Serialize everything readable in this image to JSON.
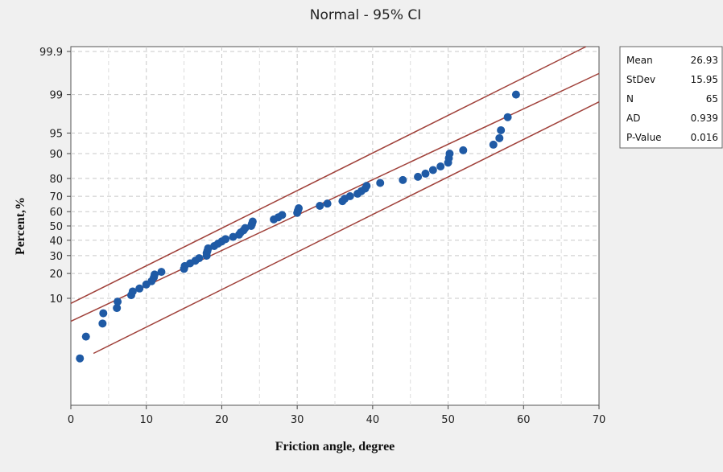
{
  "chart_data": {
    "type": "scatter",
    "title": "Normal - 95% CI",
    "xlabel": "Friction angle, degree",
    "ylabel": "Percent,%",
    "xlim": [
      0,
      70
    ],
    "ylim_percent": [
      0.1,
      99.9
    ],
    "y_scale": "normal-probability",
    "grid": true,
    "x_ticks": [
      "0",
      "10",
      "20",
      "30",
      "40",
      "50",
      "60",
      "70"
    ],
    "y_ticks": [
      {
        "value": 10,
        "label": "10"
      },
      {
        "value": 20,
        "label": "20"
      },
      {
        "value": 30,
        "label": "30"
      },
      {
        "value": 40,
        "label": "40"
      },
      {
        "value": 50,
        "label": "50"
      },
      {
        "value": 60,
        "label": "60"
      },
      {
        "value": 70,
        "label": "70"
      },
      {
        "value": 80,
        "label": "80"
      },
      {
        "value": 90,
        "label": "90"
      },
      {
        "value": 95,
        "label": "95"
      },
      {
        "value": 99,
        "label": "99"
      },
      {
        "value": 99.9,
        "label": "99.9"
      }
    ],
    "fit": {
      "mean": 26.93,
      "stdev": 15.95
    },
    "ci_lines": {
      "upper": [
        [
          0,
          8.5
        ],
        [
          70,
          99.95
        ]
      ],
      "lower": [
        [
          3,
          1.2
        ],
        [
          70,
          98.6
        ]
      ]
    },
    "points": [
      [
        1.2,
        0.95
      ],
      [
        2,
        2.5
      ],
      [
        4.2,
        4.2
      ],
      [
        4.3,
        6.1
      ],
      [
        6.1,
        7.3
      ],
      [
        6.2,
        9.0
      ],
      [
        8.0,
        11.0
      ],
      [
        8.2,
        12.3
      ],
      [
        9.1,
        13.4
      ],
      [
        10.0,
        15.0
      ],
      [
        10.7,
        16.4
      ],
      [
        11.0,
        18.1
      ],
      [
        11.1,
        19.5
      ],
      [
        12.0,
        20.8
      ],
      [
        15.0,
        22.4
      ],
      [
        15.1,
        23.9
      ],
      [
        15.8,
        25.4
      ],
      [
        16.5,
        26.9
      ],
      [
        17.0,
        28.4
      ],
      [
        18.0,
        29.9
      ],
      [
        18.0,
        31.5
      ],
      [
        18.1,
        33.0
      ],
      [
        18.2,
        34.6
      ],
      [
        19.0,
        36.1
      ],
      [
        19.5,
        37.7
      ],
      [
        20.0,
        39.2
      ],
      [
        20.5,
        40.8
      ],
      [
        21.5,
        42.3
      ],
      [
        22.3,
        43.9
      ],
      [
        22.5,
        45.4
      ],
      [
        22.9,
        47.0
      ],
      [
        23.1,
        48.5
      ],
      [
        23.9,
        50.0
      ],
      [
        24.0,
        51.5
      ],
      [
        24.1,
        53.1
      ],
      [
        26.9,
        54.6
      ],
      [
        27.5,
        56.1
      ],
      [
        28.0,
        57.7
      ],
      [
        30.0,
        59.2
      ],
      [
        30.1,
        60.8
      ],
      [
        30.2,
        62.3
      ],
      [
        33.0,
        63.9
      ],
      [
        34.0,
        65.4
      ],
      [
        36.0,
        67.0
      ],
      [
        36.3,
        68.5
      ],
      [
        37.0,
        70.1
      ],
      [
        38.0,
        71.6
      ],
      [
        38.5,
        73.1
      ],
      [
        39.0,
        74.6
      ],
      [
        39.2,
        76.1
      ],
      [
        41.0,
        77.7
      ],
      [
        44.0,
        79.2
      ],
      [
        46.0,
        80.8
      ],
      [
        47.0,
        82.3
      ],
      [
        48.0,
        83.9
      ],
      [
        49.0,
        85.4
      ],
      [
        50.0,
        86.9
      ],
      [
        50.1,
        88.5
      ],
      [
        50.2,
        90.0
      ],
      [
        52.0,
        91.0
      ],
      [
        56.0,
        92.5
      ],
      [
        56.8,
        94.0
      ],
      [
        57.0,
        95.5
      ],
      [
        57.9,
        97.3
      ],
      [
        59.0,
        99.0
      ]
    ],
    "stats": [
      {
        "label": "Mean",
        "value": "26.93"
      },
      {
        "label": "StDev",
        "value": "15.95"
      },
      {
        "label": "N",
        "value": "65"
      },
      {
        "label": "AD",
        "value": "0.939"
      },
      {
        "label": "P-Value",
        "value": "0.016"
      }
    ]
  },
  "colors": {
    "background": "#f0f0f0",
    "plot_bg": "#ffffff",
    "grid": "#c8c8c8",
    "point": "#1f5aa5",
    "ci_line": "#a0413a",
    "text": "#222222"
  }
}
